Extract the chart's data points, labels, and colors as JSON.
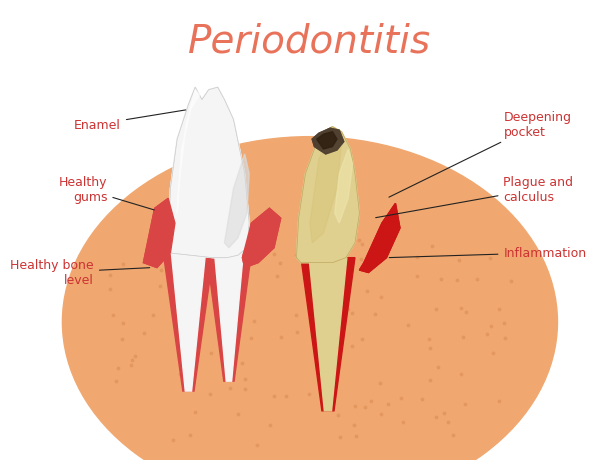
{
  "title": "Periodontitis",
  "title_color": "#e8735a",
  "title_fontsize": 28,
  "bg_color": "#ffffff",
  "labels": {
    "enamel": "Enamel",
    "healthy_gums": "Healthy\ngums",
    "healthy_bone": "Healthy bone\nlevel",
    "deepening_pocket": "Deepening\npocket",
    "plague_calculus": "Plague and\ncalculus",
    "inflammation": "Inflammation"
  },
  "label_color": "#cc3333",
  "label_fontsize": 9,
  "bone_color": "#f0a870",
  "bone_dark": "#d88850",
  "gum_color": "#d94545",
  "gum_inflamed": "#cc1515",
  "tooth_white": "#f5f5f5",
  "tooth_white_shadow": "#d8d8d8",
  "tooth_sick": "#e0d090",
  "tooth_sick_dark": "#c0a860",
  "cavity_color": "#504030",
  "cavity_dark": "#302010"
}
